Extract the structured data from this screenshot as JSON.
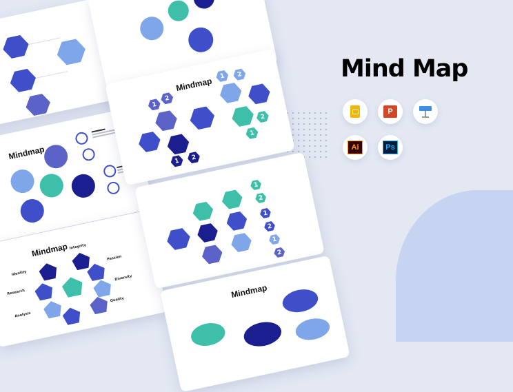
{
  "headline": "Mind Map",
  "slide_title": "Mindmap",
  "numbers": [
    "1",
    "2"
  ],
  "labels": {
    "identity": "Identity",
    "integrity": "Integrity",
    "research": "Research",
    "passion": "Passion",
    "diversity": "Diversity",
    "analysis": "Analysis",
    "quality": "Quality"
  },
  "apps": [
    {
      "name": "Google Slides",
      "icon": "google-slides-icon",
      "color": "#f4b400"
    },
    {
      "name": "PowerPoint",
      "icon": "powerpoint-icon",
      "color": "#d24726",
      "glyph": "P"
    },
    {
      "name": "Keynote",
      "icon": "keynote-icon",
      "color": "#3d8ee8"
    },
    {
      "name": "Illustrator",
      "icon": "illustrator-icon",
      "color": "#ff9a00",
      "glyph": "Ai"
    },
    {
      "name": "Photoshop",
      "icon": "photoshop-icon",
      "color": "#31a8ff",
      "glyph": "Ps"
    }
  ],
  "colors": {
    "navy": "#1b1e8f",
    "blue": "#3f4fc9",
    "indigo": "#5b63c9",
    "light_blue": "#7fa6e8",
    "teal": "#3dbfa9",
    "background": "#e3e8f3"
  }
}
